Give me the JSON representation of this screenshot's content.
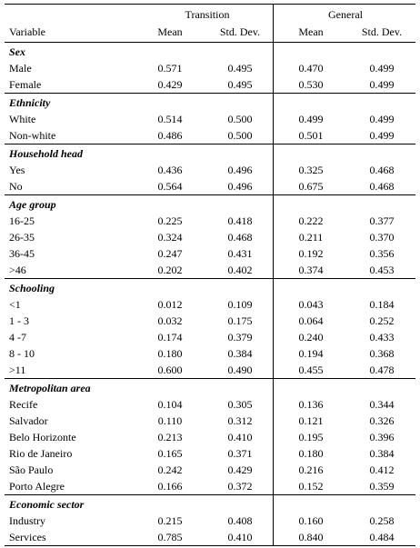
{
  "header": {
    "groups": [
      "Transition",
      "General"
    ],
    "columns": [
      "Variable",
      "Mean",
      "Std. Dev.",
      "Mean",
      "Std. Dev."
    ]
  },
  "sections": [
    {
      "title": "Sex",
      "rows": [
        [
          "Male",
          "0.571",
          "0.495",
          "0.470",
          "0.499"
        ],
        [
          "Female",
          "0.429",
          "0.495",
          "0.530",
          "0.499"
        ]
      ]
    },
    {
      "title": "Ethnicity",
      "rows": [
        [
          "White",
          "0.514",
          "0.500",
          "0.499",
          "0.499"
        ],
        [
          "Non-white",
          "0.486",
          "0.500",
          "0.501",
          "0.499"
        ]
      ]
    },
    {
      "title": "Household head",
      "rows": [
        [
          "Yes",
          "0.436",
          "0.496",
          "0.325",
          "0.468"
        ],
        [
          "No",
          "0.564",
          "0.496",
          "0.675",
          "0.468"
        ]
      ]
    },
    {
      "title": "Age group",
      "rows": [
        [
          "16-25",
          "0.225",
          "0.418",
          "0.222",
          "0.377"
        ],
        [
          "26-35",
          "0.324",
          "0.468",
          "0.211",
          "0.370"
        ],
        [
          "36-45",
          "0.247",
          "0.431",
          "0.192",
          "0.356"
        ],
        [
          ">46",
          "0.202",
          "0.402",
          "0.374",
          "0.453"
        ]
      ]
    },
    {
      "title": "Schooling",
      "rows": [
        [
          "<1",
          "0.012",
          "0.109",
          "0.043",
          "0.184"
        ],
        [
          "1 - 3",
          "0.032",
          "0.175",
          "0.064",
          "0.252"
        ],
        [
          "4 -7",
          "0.174",
          "0.379",
          "0.240",
          "0.433"
        ],
        [
          "8 - 10",
          "0.180",
          "0.384",
          "0.194",
          "0.368"
        ],
        [
          ">11",
          "0.600",
          "0.490",
          "0.455",
          "0.478"
        ]
      ]
    },
    {
      "title": "Metropolitan area",
      "rows": [
        [
          "Recife",
          "0.104",
          "0.305",
          "0.136",
          "0.344"
        ],
        [
          "Salvador",
          "0.110",
          "0.312",
          "0.121",
          "0.326"
        ],
        [
          "Belo Horizonte",
          "0.213",
          "0.410",
          "0.195",
          "0.396"
        ],
        [
          "Rio de Janeiro",
          "0.165",
          "0.371",
          "0.180",
          "0.384"
        ],
        [
          "São Paulo",
          "0.242",
          "0.429",
          "0.216",
          "0.412"
        ],
        [
          "Porto Alegre",
          "0.166",
          "0.372",
          "0.152",
          "0.359"
        ]
      ]
    },
    {
      "title": "Economic sector",
      "rows": [
        [
          "Industry",
          "0.215",
          "0.408",
          "0.160",
          "0.258"
        ],
        [
          "Services",
          "0.785",
          "0.410",
          "0.840",
          "0.484"
        ]
      ]
    }
  ]
}
